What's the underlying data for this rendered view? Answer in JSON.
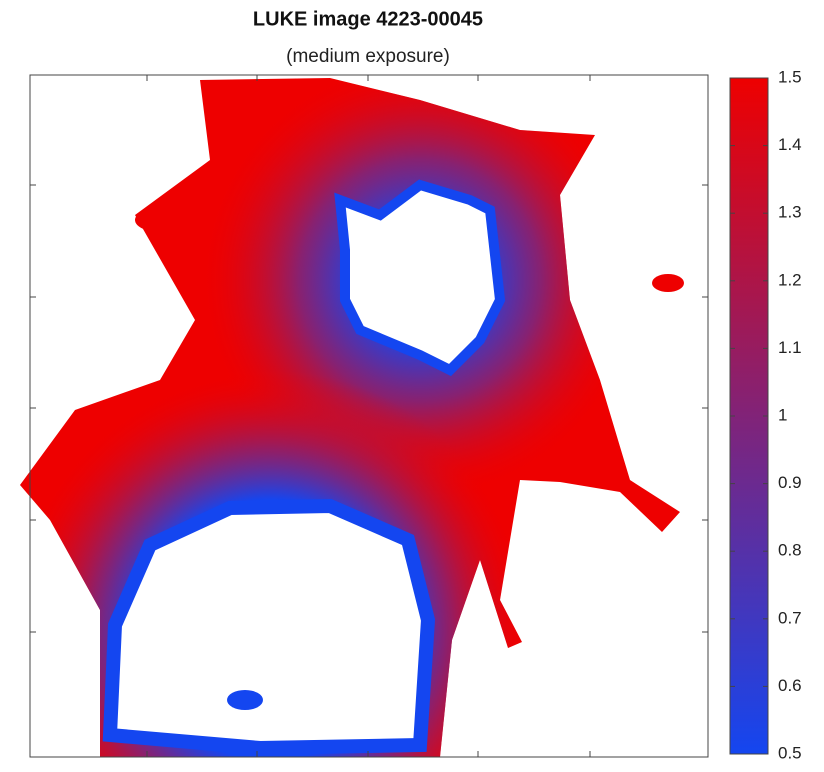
{
  "chart_data": {
    "type": "image",
    "title": "LUKE image 4223-00045",
    "subtitle": "(medium exposure)",
    "colorbar": {
      "clim": [
        0.5,
        1.5
      ],
      "ticks": [
        0.5,
        0.6,
        0.7,
        0.8,
        0.9,
        1,
        1.1,
        1.2,
        1.3,
        1.4,
        1.5
      ],
      "colors": [
        "#1446f0",
        "#ee0000"
      ]
    }
  }
}
